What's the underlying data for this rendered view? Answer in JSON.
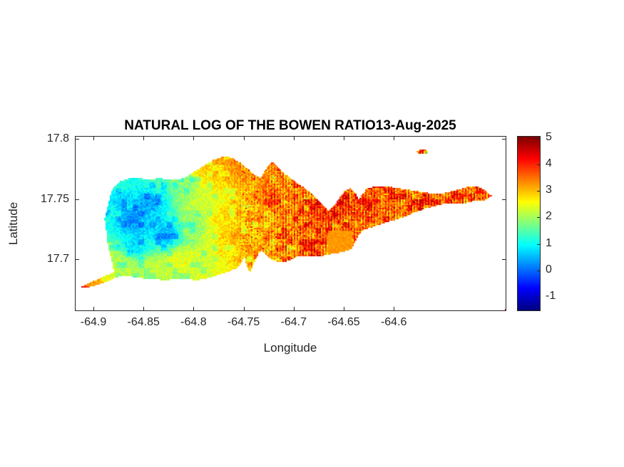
{
  "figure": {
    "title": "NATURAL LOG OF THE BOWEN RATIO13-Aug-2025",
    "xlabel": "Longitude",
    "ylabel": "Latitude"
  },
  "chart_data": {
    "type": "heatmap",
    "title": "NATURAL LOG OF THE BOWEN RATIO13-Aug-2025",
    "xlabel": "Longitude",
    "ylabel": "Latitude",
    "xlim": [
      -64.9178,
      -64.4883
    ],
    "ylim": [
      17.657,
      17.802
    ],
    "xticks": [
      -64.9,
      -64.85,
      -64.8,
      -64.75,
      -64.7,
      -64.65,
      -64.6
    ],
    "yticks": [
      17.8,
      17.75,
      17.7
    ],
    "grid": false,
    "colormap": "jet",
    "colorbar": {
      "position": "right",
      "ticks": [
        5,
        4,
        3,
        2,
        1,
        0,
        -1
      ],
      "vmin": -1.51,
      "vmax": 5.05
    },
    "island_outline": [
      [
        -64.8793,
        17.6888
      ],
      [
        -64.8808,
        17.6959
      ],
      [
        -64.885,
        17.7094
      ],
      [
        -64.8865,
        17.7218
      ],
      [
        -64.8886,
        17.7329
      ],
      [
        -64.885,
        17.7447
      ],
      [
        -64.8822,
        17.7547
      ],
      [
        -64.8779,
        17.7612
      ],
      [
        -64.8722,
        17.7647
      ],
      [
        -64.8637,
        17.7671
      ],
      [
        -64.8537,
        17.7671
      ],
      [
        -64.8437,
        17.7659
      ],
      [
        -64.8338,
        17.7671
      ],
      [
        -64.8238,
        17.7659
      ],
      [
        -64.8138,
        17.7659
      ],
      [
        -64.8067,
        17.7682
      ],
      [
        -64.7982,
        17.7729
      ],
      [
        -64.7889,
        17.7776
      ],
      [
        -64.7796,
        17.7824
      ],
      [
        -64.7697,
        17.7853
      ],
      [
        -64.7611,
        17.7841
      ],
      [
        -64.7511,
        17.7788
      ],
      [
        -64.7426,
        17.7729
      ],
      [
        -64.7369,
        17.7688
      ],
      [
        -64.7326,
        17.7676
      ],
      [
        -64.7291,
        17.7724
      ],
      [
        -64.7248,
        17.7782
      ],
      [
        -64.7205,
        17.7812
      ],
      [
        -64.7155,
        17.7765
      ],
      [
        -64.7098,
        17.7718
      ],
      [
        -64.7027,
        17.7671
      ],
      [
        -64.6942,
        17.7618
      ],
      [
        -64.6849,
        17.7565
      ],
      [
        -64.6764,
        17.75
      ],
      [
        -64.6692,
        17.7435
      ],
      [
        -64.6643,
        17.7394
      ],
      [
        -64.6593,
        17.7441
      ],
      [
        -64.6536,
        17.7512
      ],
      [
        -64.6486,
        17.7565
      ],
      [
        -64.6429,
        17.7588
      ],
      [
        -64.6379,
        17.7547
      ],
      [
        -64.6343,
        17.7488
      ],
      [
        -64.6308,
        17.7541
      ],
      [
        -64.6258,
        17.7588
      ],
      [
        -64.6158,
        17.7606
      ],
      [
        -64.6037,
        17.76
      ],
      [
        -64.5909,
        17.7582
      ],
      [
        -64.5788,
        17.7565
      ],
      [
        -64.566,
        17.7547
      ],
      [
        -64.556,
        17.7535
      ],
      [
        -64.5453,
        17.7553
      ],
      [
        -64.5354,
        17.7576
      ],
      [
        -64.5247,
        17.76
      ],
      [
        -64.5161,
        17.7606
      ],
      [
        -64.509,
        17.7571
      ],
      [
        -64.5019,
        17.7524
      ],
      [
        -64.5083,
        17.7488
      ],
      [
        -64.5176,
        17.7482
      ],
      [
        -64.5276,
        17.7465
      ],
      [
        -64.5375,
        17.7459
      ],
      [
        -64.5475,
        17.7459
      ],
      [
        -64.5575,
        17.7441
      ],
      [
        -64.5674,
        17.7418
      ],
      [
        -64.5774,
        17.7388
      ],
      [
        -64.5873,
        17.7353
      ],
      [
        -64.5973,
        17.7324
      ],
      [
        -64.608,
        17.73
      ],
      [
        -64.6186,
        17.7271
      ],
      [
        -64.6286,
        17.7241
      ],
      [
        -64.635,
        17.7194
      ],
      [
        -64.6386,
        17.7135
      ],
      [
        -64.6414,
        17.7076
      ],
      [
        -64.6514,
        17.7053
      ],
      [
        -64.6628,
        17.7035
      ],
      [
        -64.6742,
        17.7018
      ],
      [
        -64.6856,
        17.7012
      ],
      [
        -64.6955,
        17.7018
      ],
      [
        -64.7033,
        17.6988
      ],
      [
        -64.7112,
        17.6965
      ],
      [
        -64.7183,
        17.6982
      ],
      [
        -64.7248,
        17.7006
      ],
      [
        -64.7283,
        17.7035
      ],
      [
        -64.7319,
        17.7071
      ],
      [
        -64.7354,
        17.7024
      ],
      [
        -64.739,
        17.6965
      ],
      [
        -64.7433,
        17.6882
      ],
      [
        -64.7461,
        17.6924
      ],
      [
        -64.7475,
        17.6976
      ],
      [
        -64.7489,
        17.7012
      ],
      [
        -64.7525,
        17.6953
      ],
      [
        -64.7568,
        17.6918
      ],
      [
        -64.7654,
        17.6888
      ],
      [
        -64.7753,
        17.6859
      ],
      [
        -64.786,
        17.6835
      ],
      [
        -64.7967,
        17.6818
      ],
      [
        -64.8073,
        17.6829
      ],
      [
        -64.818,
        17.6829
      ],
      [
        -64.8287,
        17.6818
      ],
      [
        -64.8394,
        17.6829
      ],
      [
        -64.8501,
        17.6835
      ],
      [
        -64.8608,
        17.6847
      ],
      [
        -64.8707,
        17.6853
      ],
      [
        -64.8779,
        17.6841
      ],
      [
        -64.8879,
        17.68
      ],
      [
        -64.9021,
        17.6765
      ],
      [
        -64.9135,
        17.6753
      ],
      [
        -64.905,
        17.6794
      ],
      [
        -64.895,
        17.6829
      ],
      [
        -64.8865,
        17.6859
      ]
    ],
    "islet": {
      "lon": -64.571,
      "lat": 17.789,
      "rx": 0.006,
      "ry": 0.0018
    },
    "value_control_points": [
      [
        -64.862,
        17.733,
        0.2
      ],
      [
        -64.845,
        17.746,
        0.4
      ],
      [
        -64.828,
        17.72,
        0.5
      ],
      [
        -64.872,
        17.748,
        0.7
      ],
      [
        -64.882,
        17.735,
        1.0
      ],
      [
        -64.858,
        17.712,
        0.7
      ],
      [
        -64.878,
        17.762,
        1.2
      ],
      [
        -64.886,
        17.7,
        2.1
      ],
      [
        -64.867,
        17.694,
        2.0
      ],
      [
        -64.84,
        17.692,
        2.2
      ],
      [
        -64.815,
        17.698,
        2.4
      ],
      [
        -64.856,
        17.766,
        1.1
      ],
      [
        -64.833,
        17.768,
        1.3
      ],
      [
        -64.81,
        17.765,
        1.8
      ],
      [
        -64.79,
        17.777,
        2.9
      ],
      [
        -64.768,
        17.782,
        3.2
      ],
      [
        -64.748,
        17.775,
        3.3
      ],
      [
        -64.8,
        17.73,
        1.9
      ],
      [
        -64.785,
        17.745,
        2.3
      ],
      [
        -64.772,
        17.735,
        2.7
      ],
      [
        -64.76,
        17.72,
        2.9
      ],
      [
        -64.745,
        17.74,
        3.1
      ],
      [
        -64.73,
        17.7,
        3.0
      ],
      [
        -64.72,
        17.755,
        3.5
      ],
      [
        -64.7,
        17.73,
        3.4
      ],
      [
        -64.68,
        17.728,
        3.6
      ],
      [
        -64.665,
        17.74,
        3.9
      ],
      [
        -64.64,
        17.746,
        3.9
      ],
      [
        -64.62,
        17.75,
        3.6
      ],
      [
        -64.6,
        17.748,
        3.5
      ],
      [
        -64.575,
        17.752,
        3.5
      ],
      [
        -64.54,
        17.752,
        3.5
      ],
      [
        -64.51,
        17.752,
        3.4
      ],
      [
        -64.655,
        17.708,
        3.3
      ],
      [
        -64.63,
        17.722,
        3.5
      ],
      [
        -64.9135,
        17.675,
        4.3
      ],
      [
        -64.902,
        17.681,
        3.2
      ],
      [
        -64.888,
        17.688,
        2.4
      ],
      [
        -64.571,
        17.787,
        3.3
      ]
    ],
    "smooth_patch": {
      "lon": [
        -64.665,
        -64.641
      ],
      "lat": [
        17.698,
        17.723
      ],
      "value": 3.25
    },
    "texture": {
      "stripe_start_lon": -64.77,
      "stripe_full_lon": -64.7,
      "stripe_amp": 0.45,
      "noise_amp_west": 0.3,
      "noise_amp_east": 0.55,
      "red_fleck_prob": 0.05,
      "red_fleck_boost": 0.9,
      "yellow_fleck_prob": 0.05,
      "yellow_fleck_drop": 0.55
    }
  }
}
